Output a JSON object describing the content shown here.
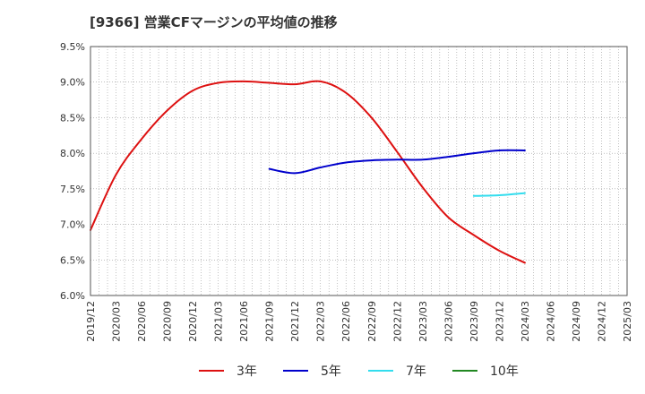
{
  "chart_data": {
    "type": "line",
    "title": "[9366]  営業CFマージンの平均値の推移",
    "xlabel": "",
    "ylabel": "",
    "ylim": [
      6.0,
      9.5
    ],
    "yticks": [
      "6.0%",
      "6.5%",
      "7.0%",
      "7.5%",
      "8.0%",
      "8.5%",
      "9.0%",
      "9.5%"
    ],
    "x_range": [
      "2019/12",
      "2025/03"
    ],
    "xticks": [
      "2019/12",
      "2020/03",
      "2020/06",
      "2020/09",
      "2020/12",
      "2021/03",
      "2021/06",
      "2021/09",
      "2021/12",
      "2022/03",
      "2022/06",
      "2022/09",
      "2022/12",
      "2023/03",
      "2023/06",
      "2023/09",
      "2023/12",
      "2024/03",
      "2024/06",
      "2024/09",
      "2024/12",
      "2025/03"
    ],
    "grid": true,
    "legend_position": "bottom",
    "series": [
      {
        "name": "3年",
        "color": "#dd1111",
        "points": [
          [
            "2019/12",
            6.92
          ],
          [
            "2020/03",
            7.7
          ],
          [
            "2020/06",
            8.2
          ],
          [
            "2020/09",
            8.6
          ],
          [
            "2020/12",
            8.88
          ],
          [
            "2021/03",
            8.99
          ],
          [
            "2021/06",
            9.01
          ],
          [
            "2021/09",
            8.99
          ],
          [
            "2021/12",
            8.97
          ],
          [
            "2022/03",
            9.01
          ],
          [
            "2022/06",
            8.85
          ],
          [
            "2022/09",
            8.5
          ],
          [
            "2022/12",
            8.02
          ],
          [
            "2023/03",
            7.52
          ],
          [
            "2023/06",
            7.1
          ],
          [
            "2023/09",
            6.85
          ],
          [
            "2023/12",
            6.63
          ],
          [
            "2024/03",
            6.46
          ]
        ]
      },
      {
        "name": "5年",
        "color": "#0000cc",
        "points": [
          [
            "2021/09",
            7.78
          ],
          [
            "2021/12",
            7.72
          ],
          [
            "2022/03",
            7.8
          ],
          [
            "2022/06",
            7.87
          ],
          [
            "2022/09",
            7.9
          ],
          [
            "2022/12",
            7.91
          ],
          [
            "2023/03",
            7.91
          ],
          [
            "2023/06",
            7.95
          ],
          [
            "2023/09",
            8.0
          ],
          [
            "2023/12",
            8.04
          ],
          [
            "2024/03",
            8.04
          ]
        ]
      },
      {
        "name": "7年",
        "color": "#33ddee",
        "points": [
          [
            "2023/09",
            7.4
          ],
          [
            "2023/12",
            7.41
          ],
          [
            "2024/03",
            7.44
          ]
        ]
      },
      {
        "name": "10年",
        "color": "#228822",
        "points": []
      }
    ]
  }
}
